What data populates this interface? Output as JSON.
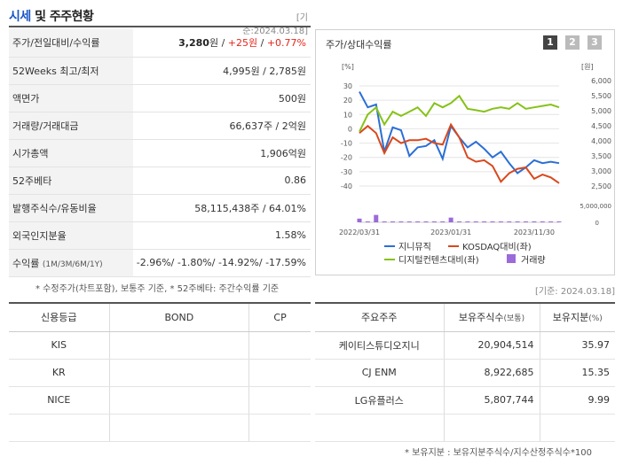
{
  "header": {
    "title_main": "시세",
    "title_sep": " 및 ",
    "title_rest": "주주현황",
    "date": "[기준:2024.03.18]"
  },
  "stats": {
    "rows": [
      {
        "label": "주가/전일대비/수익률",
        "price": "3,280",
        "price_unit": "원",
        "sep1": " / ",
        "change": "+25원",
        "sep2": " / ",
        "rate": "+0.77%"
      },
      {
        "label": "52Weeks 최고/최저",
        "value": "4,995원 / 2,785원"
      },
      {
        "label": "액면가",
        "value": "500원"
      },
      {
        "label": "거래량/거래대금",
        "value": "66,637주 / 2억원"
      },
      {
        "label": "시가총액",
        "value": "1,906억원"
      },
      {
        "label": "52주베타",
        "value": "0.86"
      },
      {
        "label": "발행주식수/유동비율",
        "value": "58,115,438주 / 64.01%"
      },
      {
        "label": "외국인지분율",
        "value": "1.58%"
      },
      {
        "label": "수익률",
        "label_sub": "(1M/3M/6M/1Y)",
        "value": "-2.96%/ -1.80%/ -14.92%/ -17.59%"
      }
    ],
    "note": "* 수정주가(차트포함), 보통주 기준, * 52주베타: 주간수익률 기준"
  },
  "chart_panel": {
    "title": "주가/상대수익률",
    "pages": [
      "1",
      "2",
      "3"
    ],
    "date": "[기준: 2024.03.18]"
  },
  "chart_data": {
    "type": "line",
    "left_axis_label": "[%]",
    "right_axis_label": "[원]",
    "ylim_left": [
      -40,
      30
    ],
    "ylim_right": [
      2500,
      6000
    ],
    "left_ticks": [
      "30",
      "20",
      "10",
      "0",
      "-10",
      "-20",
      "-30",
      "-40"
    ],
    "right_ticks": [
      "6,000",
      "5,500",
      "5,000",
      "4,500",
      "4,000",
      "3,500",
      "3,000",
      "2,500"
    ],
    "volume_ticks": [
      "5,000,000",
      "0"
    ],
    "x_ticks": [
      "2022/03/31",
      "2023/01/31",
      "2023/11/30"
    ],
    "series": [
      {
        "name": "지니뮤직",
        "color": "#2b6fd6",
        "values": [
          26,
          15,
          17,
          -16,
          1,
          -1,
          -19,
          -13,
          -12,
          -8,
          -21,
          2,
          -6,
          -13,
          -9,
          -14,
          -20,
          -16,
          -24,
          -31,
          -27,
          -22,
          -24,
          -23,
          -24
        ]
      },
      {
        "name": "KOSDAQ대비(좌)",
        "color": "#d9481c",
        "values": [
          -3,
          2,
          -3,
          -17,
          -6,
          -10,
          -8,
          -8,
          -7,
          -10,
          -11,
          3,
          -6,
          -20,
          -23,
          -22,
          -26,
          -37,
          -31,
          -28,
          -27,
          -35,
          -32,
          -34,
          -38
        ]
      },
      {
        "name": "디지털컨텐츠대비(좌)",
        "color": "#86c219",
        "values": [
          -2,
          10,
          15,
          3,
          12,
          9,
          12,
          15,
          9,
          18,
          15,
          18,
          23,
          14,
          13,
          12,
          14,
          15,
          14,
          18,
          14,
          15,
          16,
          17,
          15
        ]
      },
      {
        "name": "거래량",
        "color": "#9b6bd9",
        "values": [
          1100000,
          180000,
          2200000,
          180000,
          120000,
          130000,
          90000,
          90000,
          90000,
          90000,
          70000,
          1400000,
          90000,
          90000,
          90000,
          90000,
          90000,
          90000,
          90000,
          90000,
          90000,
          270000,
          180000,
          90000,
          90000
        ]
      }
    ]
  },
  "credit": {
    "headers": [
      "신용등급",
      "BOND",
      "CP"
    ],
    "rows": [
      {
        "agency": "KIS",
        "bond": "",
        "cp": ""
      },
      {
        "agency": "KR",
        "bond": "",
        "cp": ""
      },
      {
        "agency": "NICE",
        "bond": "",
        "cp": ""
      },
      {
        "agency": "",
        "bond": "",
        "cp": ""
      }
    ]
  },
  "holders": {
    "headers": [
      "주요주주",
      "보유주식수",
      "(보통)",
      "보유지분",
      "(%)"
    ],
    "rows": [
      {
        "name": "케이티스튜디오지니",
        "shares": "20,904,514",
        "pct": "35.97"
      },
      {
        "name": "CJ ENM",
        "shares": "8,922,685",
        "pct": "15.35"
      },
      {
        "name": "LG유플러스",
        "shares": "5,807,744",
        "pct": "9.99"
      },
      {
        "name": "",
        "shares": "",
        "pct": ""
      }
    ],
    "note": "* 보유지분 : 보유지분주식수/지수산정주식수*100"
  }
}
